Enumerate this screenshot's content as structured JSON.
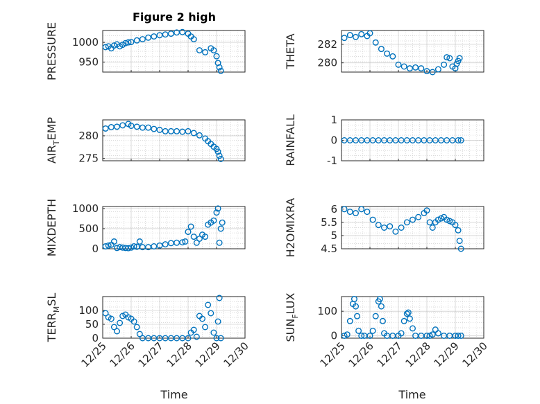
{
  "figure_title": "Figure 2 high",
  "colors": {
    "marker": "#0072bd",
    "axis": "#262626",
    "grid": "#b0b0b0"
  },
  "time_axis": {
    "xlim": [
      "12/25",
      "12/30"
    ],
    "ticks": [
      "12/25",
      "12/26",
      "12/27",
      "12/28",
      "12/29",
      "12/30"
    ],
    "label": "Time"
  },
  "chart_data": [
    {
      "type": "scatter",
      "ylabel": "PRESSURE",
      "ylim": [
        925,
        1030
      ],
      "yticks": [
        "950",
        "1000"
      ],
      "x": [
        25.1,
        25.2,
        25.3,
        25.4,
        25.5,
        25.6,
        25.7,
        25.8,
        25.9,
        26.0,
        26.2,
        26.4,
        26.6,
        26.8,
        27.0,
        27.2,
        27.4,
        27.6,
        27.8,
        28.0,
        28.1,
        28.2,
        28.4,
        28.6,
        28.8,
        28.9,
        29.0,
        29.05,
        29.1,
        29.15
      ],
      "y": [
        988,
        990,
        985,
        992,
        995,
        990,
        994,
        998,
        1000,
        1001,
        1005,
        1008,
        1012,
        1015,
        1018,
        1020,
        1022,
        1025,
        1026,
        1022,
        1015,
        1008,
        980,
        975,
        985,
        980,
        965,
        948,
        937,
        928
      ]
    },
    {
      "type": "scatter",
      "ylabel": "THETA",
      "ylim": [
        279.0,
        283.5
      ],
      "yticks": [
        "280",
        "282"
      ],
      "x": [
        25.1,
        25.3,
        25.5,
        25.7,
        25.9,
        26.0,
        26.2,
        26.4,
        26.6,
        26.8,
        27.0,
        27.2,
        27.4,
        27.6,
        27.8,
        28.0,
        28.2,
        28.4,
        28.6,
        28.7,
        28.8,
        28.9,
        29.0,
        29.05,
        29.1,
        29.15
      ],
      "y": [
        282.7,
        283.0,
        282.8,
        283.1,
        282.9,
        283.2,
        282.2,
        281.5,
        281.0,
        280.7,
        279.8,
        279.6,
        279.4,
        279.5,
        279.4,
        279.1,
        279.0,
        279.3,
        279.8,
        280.6,
        280.5,
        279.6,
        279.4,
        279.9,
        280.2,
        280.5
      ]
    },
    {
      "type": "scatter",
      "ylabel": "AIR_TEMP",
      "ylim": [
        274.5,
        283.5
      ],
      "yticks": [
        "275",
        "280"
      ],
      "x": [
        25.1,
        25.3,
        25.5,
        25.7,
        25.9,
        26.0,
        26.2,
        26.4,
        26.6,
        26.8,
        27.0,
        27.2,
        27.4,
        27.6,
        27.8,
        28.0,
        28.2,
        28.4,
        28.6,
        28.7,
        28.8,
        28.9,
        29.0,
        29.05,
        29.1,
        29.15
      ],
      "y": [
        281.6,
        281.9,
        282.0,
        282.3,
        282.6,
        282.2,
        282.0,
        281.8,
        281.8,
        281.5,
        281.3,
        281.0,
        281.0,
        281.0,
        280.9,
        281.0,
        280.6,
        280.1,
        279.4,
        278.8,
        278.2,
        277.6,
        277.1,
        276.5,
        275.6,
        274.9
      ]
    },
    {
      "type": "scatter",
      "ylabel": "RAINFALL",
      "ylim": [
        -1,
        1
      ],
      "yticks": [
        "-1",
        "0",
        "1"
      ],
      "x": [
        25.1,
        25.3,
        25.5,
        25.7,
        25.9,
        26.1,
        26.3,
        26.5,
        26.7,
        26.9,
        27.1,
        27.3,
        27.5,
        27.7,
        27.9,
        28.1,
        28.3,
        28.5,
        28.7,
        28.9,
        29.1,
        29.2
      ],
      "y": [
        0,
        0,
        0,
        0,
        0,
        0,
        0,
        0,
        0,
        0,
        0,
        0,
        0,
        0,
        0,
        0,
        0,
        0,
        0,
        0,
        0,
        0
      ]
    },
    {
      "type": "scatter",
      "ylabel": "MIXDEPTH",
      "ylim": [
        0,
        1050
      ],
      "yticks": [
        "0",
        "500",
        "1000"
      ],
      "x": [
        25.1,
        25.2,
        25.3,
        25.4,
        25.5,
        25.6,
        25.7,
        25.8,
        25.9,
        26.0,
        26.1,
        26.2,
        26.3,
        26.4,
        26.6,
        26.8,
        27.0,
        27.2,
        27.4,
        27.6,
        27.8,
        27.9,
        28.0,
        28.1,
        28.2,
        28.3,
        28.4,
        28.5,
        28.6,
        28.7,
        28.8,
        28.9,
        29.0,
        29.05,
        29.1,
        29.15,
        29.2
      ],
      "y": [
        60,
        80,
        100,
        180,
        20,
        40,
        30,
        20,
        15,
        30,
        60,
        50,
        180,
        40,
        40,
        60,
        80,
        110,
        140,
        150,
        160,
        180,
        420,
        550,
        300,
        150,
        250,
        350,
        300,
        600,
        650,
        700,
        900,
        1000,
        150,
        500,
        650
      ]
    },
    {
      "type": "scatter",
      "ylabel": "H2OMIXRA",
      "ylim": [
        4.5,
        6.1
      ],
      "yticks": [
        "4.5",
        "5",
        "5.5",
        "6"
      ],
      "x": [
        25.1,
        25.3,
        25.5,
        25.7,
        25.9,
        26.1,
        26.3,
        26.5,
        26.7,
        26.9,
        27.1,
        27.3,
        27.5,
        27.7,
        27.9,
        28.0,
        28.1,
        28.2,
        28.3,
        28.4,
        28.5,
        28.6,
        28.7,
        28.8,
        28.9,
        29.0,
        29.1,
        29.15,
        29.2
      ],
      "y": [
        6.0,
        5.9,
        5.85,
        6.0,
        5.9,
        5.6,
        5.4,
        5.3,
        5.35,
        5.15,
        5.3,
        5.5,
        5.6,
        5.7,
        5.85,
        5.95,
        5.5,
        5.3,
        5.5,
        5.6,
        5.65,
        5.7,
        5.6,
        5.55,
        5.5,
        5.4,
        5.2,
        4.8,
        4.5
      ]
    },
    {
      "type": "scatter",
      "ylabel": "TERR_MSL",
      "ylim": [
        0,
        150
      ],
      "yticks": [
        "0",
        "50",
        "100"
      ],
      "x": [
        25.1,
        25.2,
        25.3,
        25.4,
        25.5,
        25.6,
        25.7,
        25.8,
        25.9,
        26.0,
        26.1,
        26.2,
        26.3,
        26.4,
        26.6,
        26.8,
        27.0,
        27.2,
        27.4,
        27.6,
        27.8,
        28.0,
        28.1,
        28.2,
        28.3,
        28.4,
        28.5,
        28.6,
        28.7,
        28.8,
        28.9,
        29.0,
        29.05,
        29.1,
        29.15
      ],
      "y": [
        90,
        75,
        70,
        40,
        25,
        55,
        80,
        85,
        75,
        70,
        60,
        40,
        15,
        0,
        0,
        0,
        0,
        0,
        0,
        0,
        0,
        0,
        20,
        30,
        5,
        80,
        70,
        40,
        120,
        90,
        20,
        0,
        60,
        145,
        0
      ]
    },
    {
      "type": "scatter",
      "ylabel": "SUN_FLUX",
      "ylim": [
        -10,
        160
      ],
      "yticks": [
        "0",
        "100"
      ],
      "x": [
        25.1,
        25.2,
        25.3,
        25.4,
        25.45,
        25.5,
        25.55,
        25.6,
        25.7,
        25.8,
        26.0,
        26.1,
        26.2,
        26.3,
        26.35,
        26.4,
        26.45,
        26.5,
        26.6,
        26.8,
        27.0,
        27.1,
        27.2,
        27.3,
        27.35,
        27.4,
        27.5,
        27.6,
        27.8,
        28.0,
        28.1,
        28.2,
        28.3,
        28.4,
        28.6,
        28.8,
        29.0,
        29.1,
        29.2
      ],
      "y": [
        0,
        5,
        60,
        130,
        150,
        120,
        80,
        20,
        0,
        0,
        0,
        20,
        80,
        140,
        150,
        120,
        60,
        10,
        0,
        0,
        0,
        10,
        60,
        90,
        95,
        70,
        30,
        0,
        0,
        0,
        0,
        5,
        25,
        10,
        0,
        0,
        0,
        0,
        0
      ]
    }
  ]
}
